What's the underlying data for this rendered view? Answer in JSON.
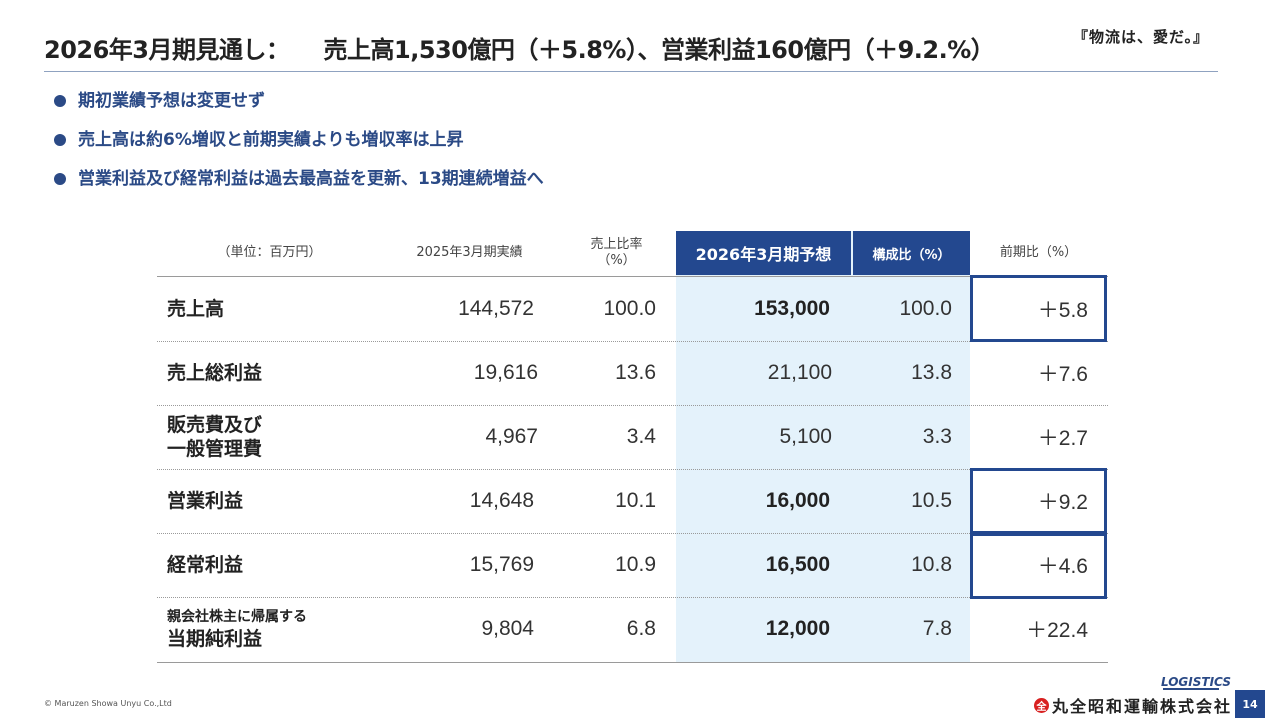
{
  "title": {
    "main": "2026年3月期見通し：",
    "detail": "売上高1,530億円（＋5.8%）、営業利益160億円（＋9.2.%）"
  },
  "slogan": "『物流は、愛だ。』",
  "bullets": [
    "期初業績予想は変更せず",
    "売上高は約6%増収と前期実績よりも増収率は上昇",
    "営業利益及び経常利益は過去最高益を更新、13期連続増益へ"
  ],
  "table": {
    "headers": {
      "unit": "（単位：百万円）",
      "prev_actual": "2025年3月期実績",
      "prev_ratio_1": "売上比率",
      "prev_ratio_2": "（%）",
      "forecast": "2026年3月期予想",
      "composition": "構成比（%）",
      "yoy": "前期比（%）"
    },
    "rows": [
      {
        "label": "売上高",
        "label_small": "",
        "prev": "144,572",
        "ratio": "100.0",
        "forecast": "153,000",
        "comp": "100.0",
        "yoy": "＋5.8"
      },
      {
        "label": "売上総利益",
        "label_small": "",
        "prev": "19,616",
        "ratio": "13.6",
        "forecast": "21,100",
        "comp": "13.8",
        "yoy": "＋7.6"
      },
      {
        "label": "販売費及び",
        "label2": "一般管理費",
        "prev": "4,967",
        "ratio": "3.4",
        "forecast": "5,100",
        "comp": "3.3",
        "yoy": "＋2.7"
      },
      {
        "label": "営業利益",
        "label_small": "",
        "prev": "14,648",
        "ratio": "10.1",
        "forecast": "16,000",
        "comp": "10.5",
        "yoy": "＋9.2"
      },
      {
        "label": "経常利益",
        "label_small": "",
        "prev": "15,769",
        "ratio": "10.9",
        "forecast": "16,500",
        "comp": "10.8",
        "yoy": "＋4.6"
      },
      {
        "label_small": "親会社株主に帰属する",
        "label": "当期純利益",
        "prev": "9,804",
        "ratio": "6.8",
        "forecast": "12,000",
        "comp": "7.8",
        "yoy": "＋22.4"
      }
    ]
  },
  "footer": {
    "copyright": "© Maruzen Showa Unyu Co.,Ltd",
    "logo_text": "LOGISTICS",
    "company": "丸全昭和運輸株式会社",
    "company_mark": "全",
    "page": "14"
  },
  "colors": {
    "accent": "#23488f",
    "bullet_text": "#2b4a86",
    "highlight_col": "#e4f2fb"
  }
}
